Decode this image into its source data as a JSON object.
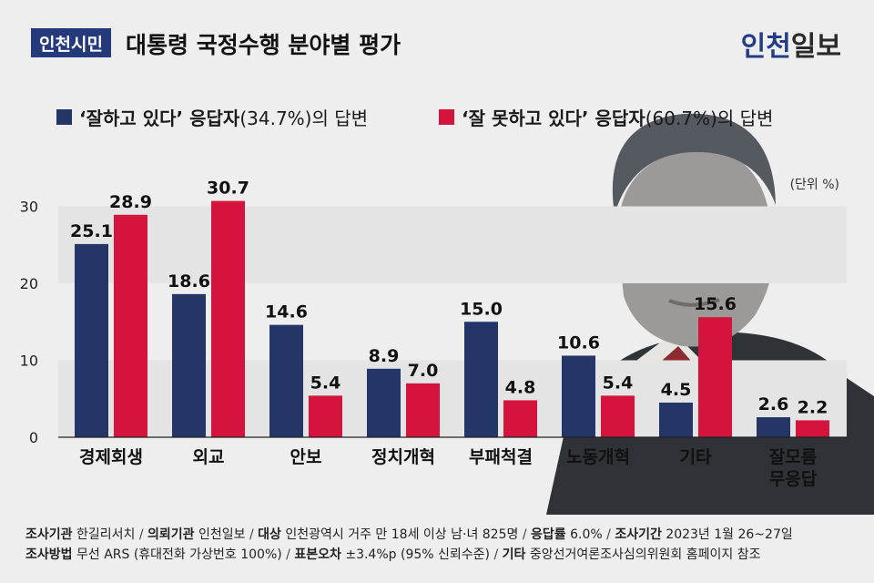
{
  "header": {
    "tag": "인천시민",
    "title": "대통령 국정수행 분야별 평가",
    "brand_part1": "인천",
    "brand_part2": "일보"
  },
  "legend": {
    "positive_label": "‘잘하고 있다’ 응답자",
    "positive_pct": "(34.7%)의 답변",
    "negative_label": "‘잘 못하고 있다’ 응답자",
    "negative_pct": "(60.7%)의 답변"
  },
  "unit": "(단위 %)",
  "colors": {
    "positive": "#243567",
    "negative": "#d4143c"
  },
  "chart_data": {
    "type": "bar",
    "categories": [
      "경제회생",
      "외교",
      "안보",
      "정치개혁",
      "부패척결",
      "노동개혁",
      "기타",
      "잘모름 무응답"
    ],
    "series": [
      {
        "name": "‘잘하고 있다’ 응답자",
        "values": [
          25.1,
          18.6,
          14.6,
          8.9,
          15.0,
          10.6,
          4.5,
          2.6
        ]
      },
      {
        "name": "‘잘 못하고 있다’ 응답자",
        "values": [
          28.9,
          30.7,
          5.4,
          7.0,
          4.8,
          5.4,
          15.6,
          2.2
        ]
      }
    ],
    "value_labels": [
      [
        "25.1",
        "18.6",
        "14.6",
        "8.9",
        "15.0",
        "10.6",
        "4.5",
        "2.6"
      ],
      [
        "28.9",
        "30.7",
        "5.4",
        "7.0",
        "4.8",
        "5.4",
        "15.6",
        "2.2"
      ]
    ],
    "yticks": [
      0,
      10,
      20,
      30
    ],
    "ylim": [
      0,
      34
    ],
    "grid": "alternating horizontal bands"
  },
  "footnotes": {
    "line1": [
      {
        "label": "조사기관",
        "value": "한길리서치"
      },
      {
        "label": "의뢰기관",
        "value": "인천일보"
      },
      {
        "label": "대상",
        "value": "인천광역시 거주 만 18세 이상 남·녀 825명"
      },
      {
        "label": "응답률",
        "value": "6.0%"
      },
      {
        "label": "조사기간",
        "value": "2023년 1월 26~27일"
      }
    ],
    "line2": [
      {
        "label": "조사방법",
        "value": "무선 ARS (휴대전화 가상번호 100%)"
      },
      {
        "label": "표본오차",
        "value": "±3.4%p (95% 신뢰수준)"
      },
      {
        "label": "기타",
        "value": "중앙선거여론조사심의위원회 홈페이지 참조"
      }
    ]
  }
}
